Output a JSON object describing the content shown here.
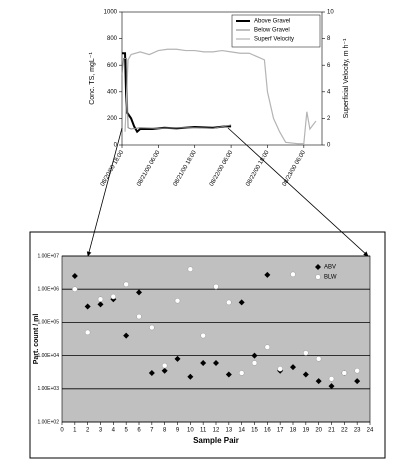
{
  "chart_data": [
    {
      "type": "line",
      "y_label": "Conc. TS, mgL⁻¹",
      "y2_label": "Superficial Velocity, m h⁻¹",
      "xlim": [
        "08/20/00 18:00",
        "08/23/00 12:00"
      ],
      "xticks": [
        "08/20/00 18:00",
        "08/21/00 06:00",
        "08/21/00 18:00",
        "08/22/00 06:00",
        "08/22/00 18:00",
        "08/23/00 06:00"
      ],
      "ylim": [
        0,
        1000
      ],
      "yticks": [
        0,
        200,
        400,
        600,
        800,
        1000
      ],
      "y2lim": [
        0,
        10
      ],
      "y2ticks": [
        0,
        2,
        4,
        6,
        8,
        10
      ],
      "legend": "upper right",
      "series": [
        {
          "name": "Above Gravel",
          "color": "#000000",
          "width": 2,
          "x": [
            "08/20/00 18:00",
            "08/20/00 19:00",
            "08/20/00 19:30",
            "08/20/00 21:00",
            "08/20/00 22:00",
            "08/20/00 23:00",
            "08/21/00 00:00",
            "08/21/00 04:00",
            "08/21/00 08:00",
            "08/21/00 12:00",
            "08/21/00 18:00",
            "08/22/00 00:00",
            "08/22/00 04:00",
            "08/22/00 06:00"
          ],
          "values": [
            690,
            690,
            250,
            200,
            140,
            100,
            120,
            120,
            130,
            125,
            135,
            130,
            140,
            140
          ]
        },
        {
          "name": "Below Gravel",
          "color": "#808080",
          "width": 1,
          "x": [
            "08/20/00 18:00",
            "08/20/00 18:30",
            "08/20/00 19:30",
            "08/20/00 20:00",
            "08/20/00 21:00",
            "08/21/00 00:00",
            "08/21/00 06:00",
            "08/21/00 12:00",
            "08/21/00 18:00",
            "08/22/00 00:00",
            "08/22/00 06:00"
          ],
          "values": [
            530,
            650,
            650,
            130,
            120,
            130,
            125,
            130,
            130,
            125,
            150
          ]
        },
        {
          "name": "Superf Velocity",
          "color": "#b4b4b4",
          "width": 1.2,
          "axis": "y2",
          "x": [
            "08/20/00 19:00",
            "08/20/00 20:00",
            "08/20/00 21:00",
            "08/21/00 00:00",
            "08/21/00 03:00",
            "08/21/00 06:00",
            "08/21/00 09:00",
            "08/21/00 12:00",
            "08/21/00 15:00",
            "08/21/00 18:00",
            "08/21/00 21:00",
            "08/22/00 00:00",
            "08/22/00 03:00",
            "08/22/00 06:00",
            "08/22/00 09:00",
            "08/22/00 12:00",
            "08/22/00 15:00",
            "08/22/00 17:00",
            "08/22/00 18:00",
            "08/22/00 20:00",
            "08/22/00 22:00",
            "08/23/00 00:00",
            "08/23/00 04:00",
            "08/23/00 06:00",
            "08/23/00 07:00",
            "08/23/00 08:00",
            "08/23/00 09:00",
            "08/23/00 10:00"
          ],
          "values": [
            1.0,
            6.4,
            6.8,
            7.0,
            6.8,
            7.1,
            7.2,
            7.2,
            7.1,
            7.1,
            7.0,
            7.0,
            7.1,
            7.0,
            6.9,
            6.9,
            6.6,
            6.4,
            4.0,
            2.0,
            1.0,
            0.2,
            0.1,
            0.1,
            2.5,
            1.2,
            1.5,
            1.8
          ]
        }
      ]
    },
    {
      "type": "scatter",
      "x_label": "Sample Pair",
      "y_label": "Part. count / ml",
      "yscale": "log",
      "background": "#c0c0c0",
      "grid": true,
      "legend": "upper right",
      "xlim": [
        0,
        24
      ],
      "xticks": [
        0,
        1,
        2,
        3,
        4,
        5,
        6,
        7,
        8,
        9,
        10,
        11,
        12,
        13,
        14,
        15,
        16,
        17,
        18,
        19,
        20,
        21,
        22,
        23,
        24
      ],
      "ylim": [
        100,
        10000000
      ],
      "yticks": [
        {
          "value": 100,
          "label": "1.00E+02"
        },
        {
          "value": 1000,
          "label": "1.00E+03"
        },
        {
          "value": 10000,
          "label": "1.00E+04"
        },
        {
          "value": 100000,
          "label": "1.00E+05"
        },
        {
          "value": 1000000,
          "label": "1.00E+06"
        },
        {
          "value": 10000000,
          "label": "1.00E+07"
        }
      ],
      "x": [
        1,
        2,
        3,
        4,
        5,
        6,
        7,
        8,
        9,
        10,
        11,
        12,
        13,
        14,
        15,
        16,
        17,
        18,
        19,
        20,
        21,
        22,
        23
      ],
      "series": [
        {
          "name": "ABV",
          "color": "#000000",
          "marker": "diamond",
          "values": [
            2500000,
            300000,
            350000,
            500000,
            40000,
            800000,
            3000,
            3500,
            8000,
            2300,
            6000,
            6000,
            2700,
            400000,
            10000,
            2700000,
            3500,
            4500,
            2700,
            1700,
            1200,
            3000,
            1700
          ]
        },
        {
          "name": "BLW",
          "color": "#ffffff",
          "marker": "circle",
          "values": [
            1000000,
            50000,
            500000,
            600000,
            1400000,
            150000,
            70000,
            5000,
            450000,
            4000000,
            40000,
            1200000,
            400000,
            3000,
            6000,
            18000,
            4000,
            2800000,
            12000,
            8000,
            2000,
            3000,
            3500
          ]
        }
      ]
    }
  ]
}
